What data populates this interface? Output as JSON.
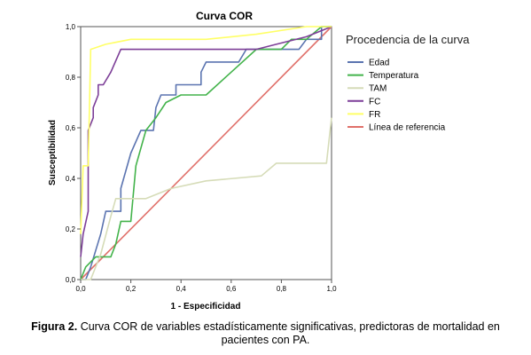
{
  "chart_data": {
    "type": "line",
    "title": "Curva COR",
    "xlabel": "1 - Especificidad",
    "ylabel": "Susceptibilidad",
    "xlim": [
      0,
      1
    ],
    "ylim": [
      0,
      1
    ],
    "x_ticks": [
      "0,0",
      "0,2",
      "0,4",
      "0,6",
      "0,8",
      "1,0"
    ],
    "y_ticks": [
      "0,0",
      "0,2",
      "0,4",
      "0,6",
      "0,8",
      "1,0"
    ],
    "grid": false,
    "legend": {
      "title": "Procedencia de la curva",
      "placement": "right"
    },
    "series": [
      {
        "name": "Edad",
        "color": "#5b74b0",
        "points": [
          [
            0,
            0
          ],
          [
            0.02,
            0
          ],
          [
            0.04,
            0.05
          ],
          [
            0.08,
            0.18
          ],
          [
            0.1,
            0.27
          ],
          [
            0.16,
            0.27
          ],
          [
            0.16,
            0.36
          ],
          [
            0.2,
            0.5
          ],
          [
            0.24,
            0.59
          ],
          [
            0.29,
            0.59
          ],
          [
            0.3,
            0.68
          ],
          [
            0.32,
            0.73
          ],
          [
            0.38,
            0.73
          ],
          [
            0.38,
            0.77
          ],
          [
            0.48,
            0.77
          ],
          [
            0.48,
            0.82
          ],
          [
            0.5,
            0.86
          ],
          [
            0.63,
            0.86
          ],
          [
            0.66,
            0.91
          ],
          [
            0.87,
            0.91
          ],
          [
            0.9,
            0.95
          ],
          [
            0.96,
            0.95
          ],
          [
            0.96,
            1.0
          ],
          [
            1,
            1
          ]
        ]
      },
      {
        "name": "Temperatura",
        "color": "#43b34b",
        "points": [
          [
            0,
            0
          ],
          [
            0.02,
            0.05
          ],
          [
            0.06,
            0.09
          ],
          [
            0.12,
            0.09
          ],
          [
            0.14,
            0.14
          ],
          [
            0.16,
            0.23
          ],
          [
            0.2,
            0.23
          ],
          [
            0.22,
            0.45
          ],
          [
            0.26,
            0.59
          ],
          [
            0.3,
            0.64
          ],
          [
            0.34,
            0.7
          ],
          [
            0.4,
            0.73
          ],
          [
            0.5,
            0.73
          ],
          [
            0.6,
            0.82
          ],
          [
            0.7,
            0.91
          ],
          [
            0.8,
            0.91
          ],
          [
            0.84,
            0.95
          ],
          [
            0.9,
            0.95
          ],
          [
            0.96,
            1.0
          ],
          [
            1,
            1
          ]
        ]
      },
      {
        "name": "TAM",
        "color": "#d6dcb8",
        "points": [
          [
            0,
            0
          ],
          [
            0.04,
            0
          ],
          [
            0.08,
            0.1
          ],
          [
            0.12,
            0.25
          ],
          [
            0.14,
            0.32
          ],
          [
            0.26,
            0.32
          ],
          [
            0.36,
            0.36
          ],
          [
            0.5,
            0.39
          ],
          [
            0.72,
            0.41
          ],
          [
            0.78,
            0.46
          ],
          [
            0.98,
            0.46
          ],
          [
            1.0,
            0.64
          ]
        ]
      },
      {
        "name": "FC",
        "color": "#7d3f98",
        "points": [
          [
            0,
            0.09
          ],
          [
            0.01,
            0.18
          ],
          [
            0.03,
            0.27
          ],
          [
            0.03,
            0.59
          ],
          [
            0.05,
            0.64
          ],
          [
            0.05,
            0.68
          ],
          [
            0.07,
            0.73
          ],
          [
            0.07,
            0.77
          ],
          [
            0.09,
            0.77
          ],
          [
            0.12,
            0.82
          ],
          [
            0.16,
            0.91
          ],
          [
            0.7,
            0.91
          ],
          [
            0.78,
            0.93
          ],
          [
            0.9,
            0.96
          ],
          [
            1,
            1
          ]
        ]
      },
      {
        "name": "FR",
        "color": "#ffff66",
        "points": [
          [
            0,
            0.18
          ],
          [
            0.01,
            0.45
          ],
          [
            0.03,
            0.45
          ],
          [
            0.04,
            0.91
          ],
          [
            0.1,
            0.93
          ],
          [
            0.2,
            0.95
          ],
          [
            0.5,
            0.95
          ],
          [
            0.7,
            0.97
          ],
          [
            0.9,
            1.0
          ],
          [
            1,
            1
          ]
        ]
      },
      {
        "name": "Línea de referencia",
        "color": "#e0706a",
        "points": [
          [
            0,
            0
          ],
          [
            1,
            1
          ]
        ]
      }
    ]
  },
  "caption": {
    "label": "Figura 2.",
    "text": " Curva COR de variables estadísticamente significativas, predictoras de mortalidad en pacientes con PA."
  }
}
